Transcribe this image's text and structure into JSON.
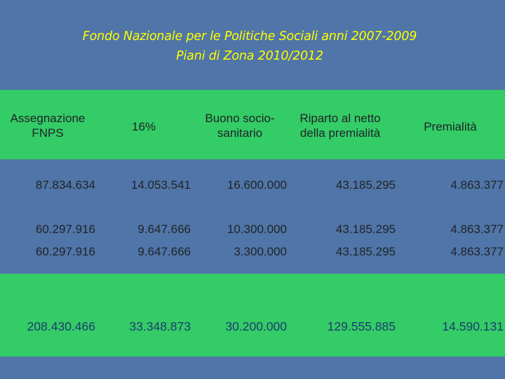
{
  "title": {
    "line1": "Fondo Nazionale per le Politiche Sociali anni 2007-2009",
    "line2": "Piani di Zona 2010/2012"
  },
  "headers": {
    "col1": "Assegnazione FNPS",
    "col2": "16%",
    "col3": "Buono socio-sanitario",
    "col4": "Riparto al netto della premialità",
    "col5": "Premialità"
  },
  "headers_lines": {
    "col1_a": "Assegnazione",
    "col1_b": "FNPS",
    "col3_a": "Buono socio-",
    "col3_b": "sanitario",
    "col4_a": "Riparto al netto",
    "col4_b": "della premialità"
  },
  "rows": [
    [
      "87.834.634",
      "14.053.541",
      "16.600.000",
      "43.185.295",
      "4.863.377"
    ],
    [
      "60.297.916",
      "9.647.666",
      "10.300.000",
      "43.185.295",
      "4.863.377"
    ],
    [
      "60.297.916",
      "9.647.666",
      "3.300.000",
      "43.185.295",
      "4.863.377"
    ]
  ],
  "totals": [
    "208.430.466",
    "33.348.873",
    "30.200.000",
    "129.555.885",
    "14.590.131"
  ],
  "colors": {
    "background": "#5075a8",
    "band": "#33cc66",
    "title": "#ffff00",
    "total_text": "#1e3d6e"
  }
}
